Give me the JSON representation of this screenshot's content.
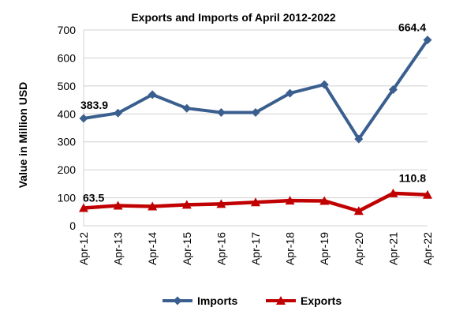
{
  "chart_data": {
    "type": "line",
    "title": "Exports and Imports of April 2012-2022",
    "ylabel": "Value in  Million  USD",
    "xlabel": "",
    "categories": [
      "Apr-12",
      "Apr-13",
      "Apr-14",
      "Apr-15",
      "Apr-16",
      "Apr-17",
      "Apr-18",
      "Apr-19",
      "Apr-20",
      "Apr-21",
      "Apr-22"
    ],
    "ylim": [
      0,
      700
    ],
    "yticks": [
      0,
      100,
      200,
      300,
      400,
      500,
      600,
      700
    ],
    "grid": "horizontal",
    "legend_position": "bottom",
    "series": [
      {
        "name": "Imports",
        "color": "#3A5F8F",
        "marker": "diamond",
        "values": [
          383.9,
          403,
          469,
          420,
          405,
          405,
          474,
          505,
          310,
          487,
          664.4
        ],
        "labels": [
          {
            "index": 0,
            "text": "383.9"
          },
          {
            "index": 10,
            "text": "664.4"
          }
        ]
      },
      {
        "name": "Exports",
        "color": "#C00000",
        "marker": "triangle",
        "values": [
          63.5,
          72,
          69,
          75,
          78,
          84,
          90,
          89,
          53,
          116,
          110.8
        ],
        "labels": [
          {
            "index": 0,
            "text": "63.5"
          },
          {
            "index": 10,
            "text": "110.8"
          }
        ]
      }
    ]
  }
}
